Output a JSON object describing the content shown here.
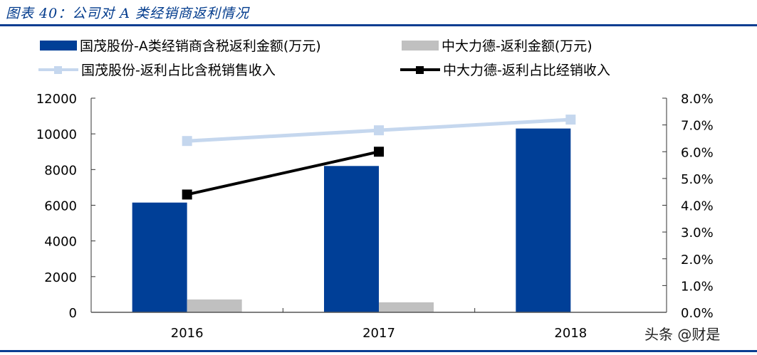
{
  "figure": {
    "title": "图表 40：公司对 A 类经销商返利情况",
    "watermark": "头条 @财是"
  },
  "legend": [
    {
      "label": "国茂股份-A类经销商含税返利金额(万元)",
      "type": "bar",
      "color": "#003f97"
    },
    {
      "label": "中大力德-返利金额(万元)",
      "type": "bar",
      "color": "#c0c0c0"
    },
    {
      "label": "国茂股份-返利占比含税销售收入",
      "type": "line",
      "color": "#c5d7ee"
    },
    {
      "label": "中大力德-返利占比经销收入",
      "type": "line",
      "color": "#000000"
    }
  ],
  "axes": {
    "left_ticks": [
      "0",
      "2000",
      "4000",
      "6000",
      "8000",
      "10000",
      "12000"
    ],
    "right_ticks": [
      "0.0%",
      "1.0%",
      "2.0%",
      "3.0%",
      "4.0%",
      "5.0%",
      "6.0%",
      "7.0%",
      "8.0%"
    ],
    "x_ticks": [
      "2016",
      "2017",
      "2018"
    ]
  },
  "chart_data": {
    "type": "bar",
    "title": "图表 40：公司对 A 类经销商返利情况",
    "categories": [
      "2016",
      "2017",
      "2018"
    ],
    "series": [
      {
        "name": "国茂股份-A类经销商含税返利金额(万元)",
        "type": "bar",
        "axis": "left",
        "color": "#003f97",
        "values": [
          6150,
          8200,
          10300
        ]
      },
      {
        "name": "中大力德-返利金额(万元)",
        "type": "bar",
        "axis": "left",
        "color": "#c0c0c0",
        "values": [
          720,
          560,
          null
        ]
      },
      {
        "name": "国茂股份-返利占比含税销售收入",
        "type": "line",
        "axis": "right",
        "color": "#c5d7ee",
        "values": [
          0.064,
          0.068,
          0.072
        ]
      },
      {
        "name": "中大力德-返利占比经销收入",
        "type": "line",
        "axis": "right",
        "color": "#000000",
        "values": [
          0.044,
          0.06,
          null
        ]
      }
    ],
    "xlabel": "",
    "ylabel": "",
    "ylim": [
      0,
      12000
    ],
    "y2lim": [
      0,
      0.08
    ],
    "grid": false,
    "legend_position": "top"
  }
}
